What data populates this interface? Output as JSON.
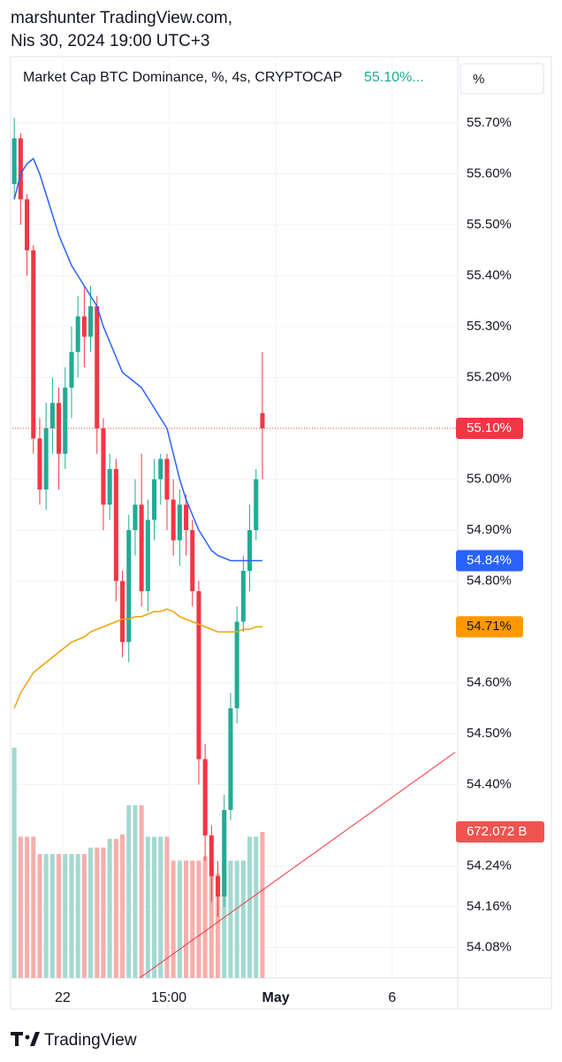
{
  "chart_data": {
    "type": "candlestick",
    "header": {
      "author": "marshunter TradingView.com,",
      "date": "Nis 30, 2024 19:00 UTC+3"
    },
    "legend": {
      "symbol": "Market Cap BTC Dominance, %, 4s, CRYPTOCAP",
      "last": "55.10%..."
    },
    "scale_button": "%",
    "brand": "TradingView",
    "xlim": [
      -0.3,
      69.7
    ],
    "xticks": [
      {
        "value": 7.6,
        "label": "22"
      },
      {
        "value": 24.3,
        "label": "15:00"
      },
      {
        "value": 41.1,
        "label": "May"
      },
      {
        "value": 59.4,
        "label": "6"
      }
    ],
    "ylim": [
      54.02,
      55.82
    ],
    "yticks": [
      {
        "value": 55.7,
        "label": "55.70%"
      },
      {
        "value": 55.6,
        "label": "55.60%"
      },
      {
        "value": 55.5,
        "label": "55.50%"
      },
      {
        "value": 55.4,
        "label": "55.40%"
      },
      {
        "value": 55.3,
        "label": "55.30%"
      },
      {
        "value": 55.2,
        "label": "55.20%"
      },
      {
        "value": 55.0,
        "label": "55.00%"
      },
      {
        "value": 54.9,
        "label": "54.90%"
      },
      {
        "value": 54.8,
        "label": "54.80%"
      },
      {
        "value": 54.6,
        "label": "54.60%"
      },
      {
        "value": 54.5,
        "label": "54.50%"
      },
      {
        "value": 54.4,
        "label": "54.40%"
      },
      {
        "value": 54.24,
        "label": "54.24%"
      },
      {
        "value": 54.16,
        "label": "54.16%"
      },
      {
        "value": 54.08,
        "label": "54.08%"
      }
    ],
    "grid": true,
    "up_color": "#22ab94",
    "down_color": "#f23645",
    "open": [
      55.58,
      55.67,
      55.55,
      55.45,
      55.08,
      54.98,
      55.1,
      55.15,
      55.05,
      55.18,
      55.25,
      55.32,
      55.28,
      55.34,
      55.1,
      54.95,
      55.02,
      54.8,
      54.68,
      54.9,
      54.95,
      54.78,
      54.92,
      55.0,
      55.04,
      54.96,
      54.88,
      54.95,
      54.9,
      54.78,
      54.45,
      54.3,
      54.22,
      54.18,
      54.35,
      54.55,
      54.72,
      54.82,
      54.9,
      55.13
    ],
    "high": [
      55.71,
      55.68,
      55.56,
      55.46,
      55.12,
      55.15,
      55.2,
      55.18,
      55.22,
      55.3,
      55.36,
      55.38,
      55.38,
      55.36,
      55.12,
      55.05,
      55.04,
      54.82,
      54.93,
      55.0,
      55.05,
      54.96,
      55.04,
      55.05,
      55.05,
      55.0,
      54.98,
      54.97,
      54.92,
      54.8,
      54.48,
      54.32,
      54.25,
      54.38,
      54.58,
      54.75,
      54.85,
      54.95,
      55.02,
      55.25
    ],
    "low": [
      55.55,
      55.5,
      55.4,
      55.05,
      54.95,
      54.94,
      55.05,
      54.98,
      55.02,
      55.12,
      55.2,
      55.22,
      55.25,
      55.05,
      54.9,
      54.92,
      54.76,
      54.65,
      54.64,
      54.85,
      54.75,
      54.74,
      54.88,
      54.95,
      54.9,
      54.85,
      54.83,
      54.85,
      54.75,
      54.4,
      54.25,
      54.17,
      54.14,
      54.16,
      54.33,
      54.52,
      54.7,
      54.78,
      54.88,
      55.0
    ],
    "close": [
      55.67,
      55.55,
      55.45,
      55.08,
      54.98,
      55.1,
      55.15,
      55.05,
      55.18,
      55.25,
      55.32,
      55.28,
      55.34,
      55.1,
      54.95,
      55.02,
      54.8,
      54.68,
      54.9,
      54.95,
      54.78,
      54.92,
      55.0,
      55.04,
      54.96,
      54.88,
      54.95,
      54.9,
      54.78,
      54.45,
      54.3,
      54.22,
      54.18,
      54.35,
      54.55,
      54.72,
      54.82,
      54.9,
      55.0,
      55.1
    ],
    "volume": [
      1060,
      650,
      650,
      650,
      570,
      570,
      570,
      570,
      570,
      570,
      570,
      570,
      600,
      600,
      600,
      640,
      640,
      660,
      795,
      795,
      795,
      650,
      650,
      650,
      650,
      540,
      540,
      540,
      540,
      540,
      560,
      510,
      480,
      540,
      540,
      540,
      540,
      650,
      650,
      672.072
    ],
    "volume_lim": [
      0,
      4216
    ],
    "volume_up_color": "#a3d9d0",
    "volume_down_color": "#f7aeab",
    "series": [
      {
        "color": "#2962ff",
        "values": [
          55.55,
          55.6,
          55.62,
          55.63,
          55.6,
          55.56,
          55.52,
          55.48,
          55.45,
          55.42,
          55.4,
          55.38,
          55.36,
          55.34,
          55.3,
          55.27,
          55.24,
          55.21,
          55.2,
          55.19,
          55.18,
          55.16,
          55.14,
          55.12,
          55.1,
          55.05,
          55.0,
          54.96,
          54.93,
          54.9,
          54.88,
          54.86,
          54.85,
          54.845,
          54.84,
          54.84,
          54.84,
          54.84,
          54.84,
          54.84
        ]
      },
      {
        "color": "#f0a30a",
        "values": [
          54.55,
          54.58,
          54.6,
          54.62,
          54.63,
          54.64,
          54.65,
          54.66,
          54.67,
          54.68,
          54.685,
          54.69,
          54.7,
          54.705,
          54.71,
          54.715,
          54.72,
          54.725,
          54.725,
          54.73,
          54.73,
          54.735,
          54.74,
          54.74,
          54.745,
          54.74,
          54.73,
          54.725,
          54.72,
          54.715,
          54.71,
          54.705,
          54.7,
          54.7,
          54.7,
          54.7,
          54.705,
          54.705,
          54.71,
          54.71
        ]
      }
    ],
    "price_labels": [
      {
        "value": 55.1,
        "label": "55.10%",
        "color": "#f23645",
        "text_color": "#ffffff"
      },
      {
        "value": 54.84,
        "label": "54.84%",
        "color": "#2962ff",
        "text_color": "#ffffff"
      },
      {
        "value": 54.71,
        "label": "54.71%",
        "color": "#ff9800",
        "text_color": "#131722"
      }
    ],
    "volume_label": {
      "value": 672.072,
      "label": "672.072 B",
      "color": "#ef5350",
      "text_color": "#ffffff"
    }
  }
}
